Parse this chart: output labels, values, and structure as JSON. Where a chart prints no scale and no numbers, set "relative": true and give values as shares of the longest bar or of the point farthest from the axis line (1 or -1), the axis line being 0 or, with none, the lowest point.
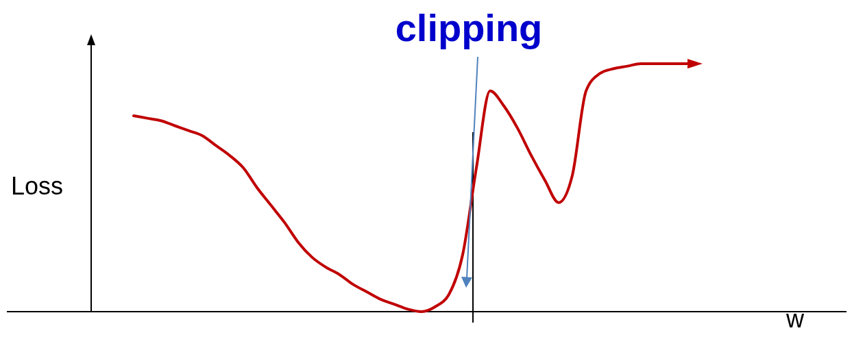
{
  "chart_data": {
    "type": "line",
    "title": "clipping",
    "ylabel": "Loss",
    "xlabel": "w",
    "relative": true,
    "categories": [
      null,
      null,
      null,
      null,
      null,
      null,
      null,
      null,
      null,
      null,
      null,
      null,
      null,
      null,
      null,
      null,
      null,
      null,
      null,
      null,
      null,
      null,
      null,
      null,
      null,
      null,
      null,
      null,
      null,
      null,
      null,
      null,
      null,
      null,
      null,
      null,
      null,
      null,
      null,
      null,
      null,
      null
    ],
    "series": [
      {
        "color": "#c00000",
        "values": [
          0.79,
          0.78,
          0.77,
          0.75,
          0.73,
          0.71,
          0.67,
          0.63,
          0.58,
          0.5,
          0.43,
          0.36,
          0.28,
          0.22,
          0.18,
          0.15,
          0.11,
          0.08,
          0.05,
          0.03,
          0.01,
          0,
          0.02,
          0.07,
          0.23,
          0.58,
          0.89,
          0.83,
          0.74,
          0.63,
          0.53,
          0.44,
          0.55,
          0.89,
          0.96,
          0.98,
          0.99,
          1,
          1,
          1,
          1,
          1
        ]
      }
    ]
  }
}
